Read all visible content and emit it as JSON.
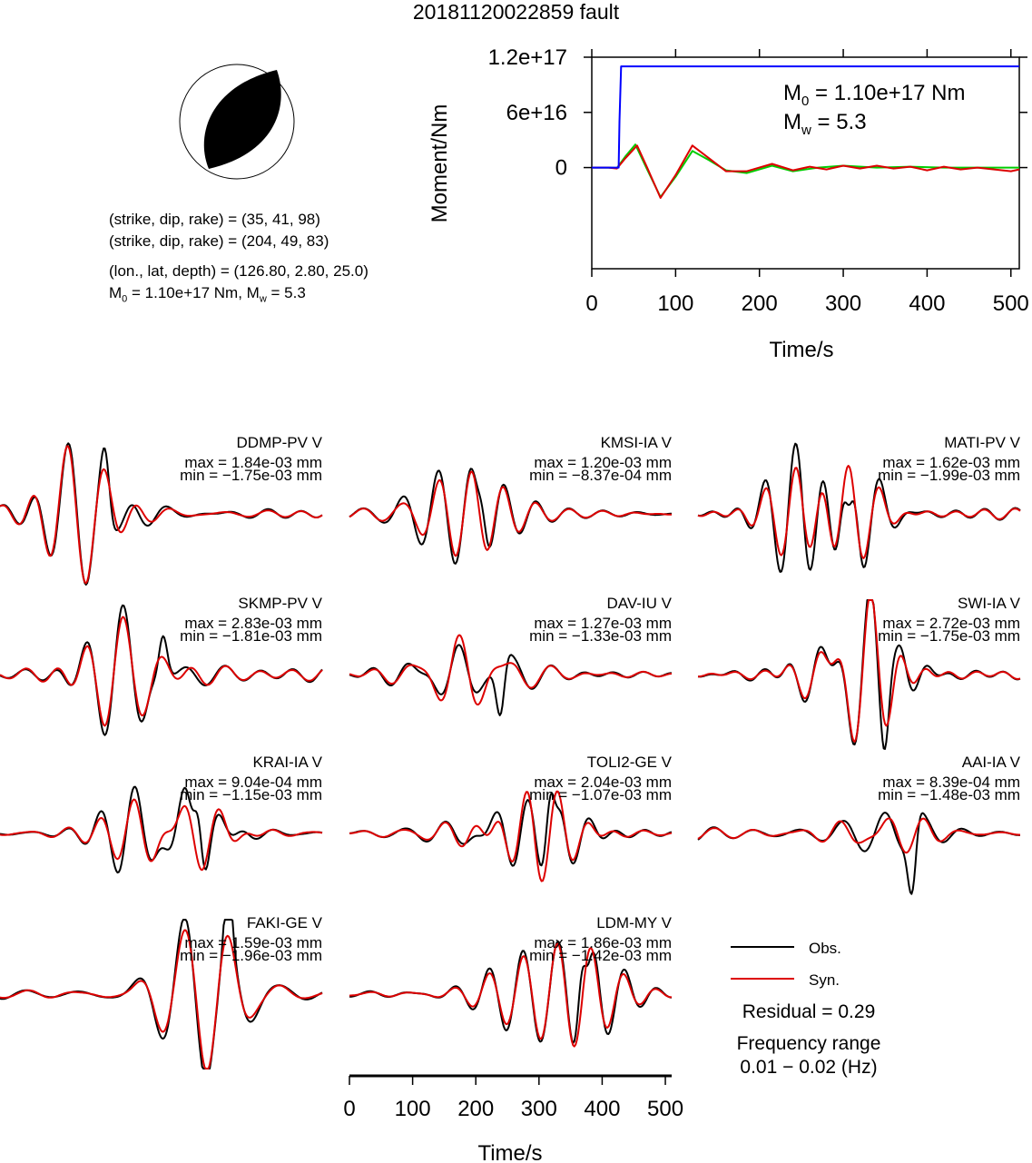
{
  "title": "20181120022859 fault",
  "focal": {
    "np1": "(strike, dip, rake) = (35, 41, 98)",
    "np2": "(strike, dip, rake) = (204, 49, 83)",
    "loc": "(lon., lat, depth) = (126.80, 2.80, 25.0)",
    "m0_label": "M",
    "m0_sub": "0",
    "m0_rest": " = 1.10e+17 Nm, M",
    "mw_sub": "w",
    "mw_rest": " = 5.3"
  },
  "chart_data": [
    {
      "type": "line",
      "name": "moment-rate-plot",
      "ylabel": "Moment/Nm",
      "xlabel": "Time/s",
      "xlim": [
        0,
        510
      ],
      "ylim": [
        -1.1e+17,
        1.2e+17
      ],
      "xticks": [
        0,
        100,
        200,
        300,
        400,
        500
      ],
      "yticks": [
        {
          "v": 1.2e+17,
          "label": "1.2e+17"
        },
        {
          "v": 6e+16,
          "label": "6e+16"
        },
        {
          "v": 0,
          "label": "0"
        }
      ],
      "annotation": {
        "m0": "M",
        "m0_sub": "0",
        "m0_rest": " = 1.10e+17 Nm",
        "mw": "M",
        "mw_sub": "w",
        "mw_rest": " = 5.3"
      },
      "series": [
        {
          "color": "#0000ff",
          "x": [
            0,
            32,
            33,
            35,
            510
          ],
          "y": [
            0,
            0,
            5e+16,
            1.1e+17,
            1.1e+17
          ]
        },
        {
          "color": "#00cc00",
          "x": [
            0,
            20,
            30,
            40,
            52,
            65,
            82,
            100,
            120,
            140,
            160,
            185,
            215,
            240,
            270,
            300,
            340,
            380,
            420,
            460,
            510
          ],
          "y": [
            0,
            0,
            -500000000000000.0,
            1.2e+16,
            2.5e+16,
            0,
            -3.2e+16,
            -1e+16,
            1.8e+16,
            8000000000000000.0,
            -3000000000000000.0,
            -6000000000000000.0,
            2000000000000000.0,
            -4000000000000000.0,
            0,
            2000000000000000.0,
            0,
            1000000000000000.0,
            0,
            0,
            0
          ]
        },
        {
          "color": "#dd0000",
          "x": [
            0,
            20,
            30,
            40,
            54,
            66,
            82,
            100,
            120,
            140,
            160,
            185,
            215,
            240,
            260,
            280,
            300,
            320,
            340,
            360,
            380,
            400,
            420,
            440,
            460,
            480,
            500,
            510
          ],
          "y": [
            0,
            0,
            -1000000000000000.0,
            1e+16,
            2.4e+16,
            0,
            -3.3e+16,
            -8000000000000000.0,
            2.4e+16,
            1e+16,
            -4000000000000000.0,
            -4000000000000000.0,
            4000000000000000.0,
            -3000000000000000.0,
            1000000000000000.0,
            -2000000000000000.0,
            2000000000000000.0,
            -1000000000000000.0,
            2000000000000000.0,
            -1000000000000000.0,
            1000000000000000.0,
            -3000000000000000.0,
            1000000000000000.0,
            -2000000000000000.0,
            0,
            -2000000000000000.0,
            -4000000000000000.0,
            -2000000000000000.0
          ]
        }
      ]
    },
    {
      "type": "line",
      "name": "waveform-panels",
      "xlabel": "Time/s",
      "xlim": [
        0,
        510
      ],
      "xticks": [
        0,
        100,
        200,
        300,
        400,
        500
      ],
      "obs_color": "#000000",
      "syn_color": "#dd0000",
      "stations": [
        {
          "name": "DDMP-PV V",
          "max": "max = 1.84e-03 mm",
          "min": "min = −1.75e-03 mm",
          "seed": 1,
          "t0": 130,
          "spike": 0.45
        },
        {
          "name": "KMSI-IA V",
          "max": "max = 1.20e-03 mm",
          "min": "min = −8.37e-04 mm",
          "seed": 2,
          "t0": 170,
          "spike": 0.35
        },
        {
          "name": "MATI-PV V",
          "max": "max = 1.62e-03 mm",
          "min": "min = −1.99e-03 mm",
          "seed": 3,
          "t0": 200,
          "spike": 0.65
        },
        {
          "name": "SKMP-PV V",
          "max": "max = 2.83e-03 mm",
          "min": "min = −1.81e-03 mm",
          "seed": 4,
          "t0": 215,
          "spike": 0.45
        },
        {
          "name": "DAV-IU V",
          "max": "max = 1.27e-03 mm",
          "min": "min = −1.33e-03 mm",
          "seed": 5,
          "t0": 200,
          "spike": 0.55
        },
        {
          "name": "SWI-IA V",
          "max": "max = 2.72e-03 mm",
          "min": "min = −1.75e-03 mm",
          "seed": 6,
          "t0": 260,
          "spike": 0.5
        },
        {
          "name": "KRAI-IA V",
          "max": "max = 9.04e-04 mm",
          "min": "min = −1.15e-03 mm",
          "seed": 7,
          "t0": 275,
          "spike": 0.65
        },
        {
          "name": "TOLI2-GE V",
          "max": "max = 2.04e-03 mm",
          "min": "min = −1.07e-03 mm",
          "seed": 8,
          "t0": 280,
          "spike": 0.6
        },
        {
          "name": "AAI-IA V",
          "max": "max = 8.39e-04 mm",
          "min": "min = −1.48e-03 mm",
          "seed": 9,
          "t0": 300,
          "spike": 0.7
        },
        {
          "name": "FAKI-GE V",
          "max": "max = 1.59e-03 mm",
          "min": "min = −1.96e-03 mm",
          "seed": 10,
          "t0": 320,
          "spike": 0.65
        },
        {
          "name": "LDM-MY V",
          "max": "max = 1.86e-03 mm",
          "min": "min = −1.42e-03 mm",
          "seed": 11,
          "t0": 330,
          "spike": 0.7
        }
      ]
    }
  ],
  "legend": {
    "obs": "Obs.",
    "syn": "Syn.",
    "residual": "Residual = 0.29",
    "freq_title": "Frequency range",
    "freq_range": "0.01 − 0.02 (Hz)"
  }
}
